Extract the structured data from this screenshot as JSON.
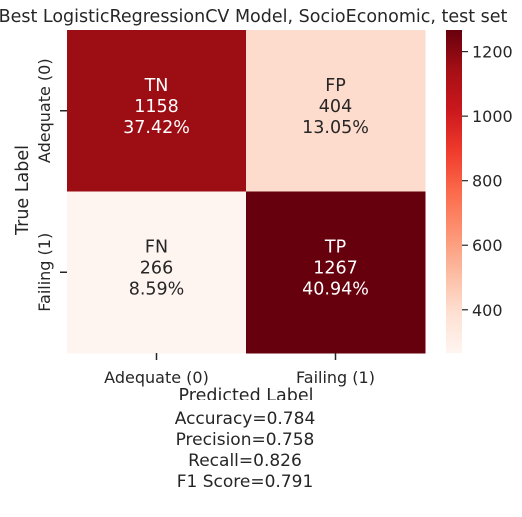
{
  "chart_data": {
    "type": "heatmap",
    "title": "Best LogisticRegressionCV Model, SocioEconomic, test set",
    "xlabel": "Predicted Label",
    "ylabel": "True Label",
    "x_categories": [
      "Adequate (0)",
      "Failing (1)"
    ],
    "y_categories": [
      "Adequate (0)",
      "Failing (1)"
    ],
    "cells": [
      [
        {
          "label": "TN",
          "count": "1158",
          "pct": "37.42%",
          "value": 1158
        },
        {
          "label": "FP",
          "count": "404",
          "pct": "13.05%",
          "value": 404
        }
      ],
      [
        {
          "label": "FN",
          "count": "266",
          "pct": "8.59%",
          "value": 266
        },
        {
          "label": "TP",
          "count": "1267",
          "pct": "40.94%",
          "value": 1267
        }
      ]
    ],
    "colorbar": {
      "ticks": [
        "400",
        "600",
        "800",
        "1000",
        "1200"
      ],
      "tick_values": [
        400,
        600,
        800,
        1000,
        1200
      ],
      "vmin": 266,
      "vmax": 1267,
      "cmap": "Reds",
      "colors": [
        "#fff5f0",
        "#fee0d2",
        "#fcbba1",
        "#fc9272",
        "#fb6a4a",
        "#ef3b2c",
        "#cb181d",
        "#a50f15",
        "#67000d"
      ]
    },
    "grid": false
  },
  "stats": [
    "Accuracy=0.784",
    "Precision=0.758",
    "Recall=0.826",
    "F1 Score=0.791"
  ]
}
